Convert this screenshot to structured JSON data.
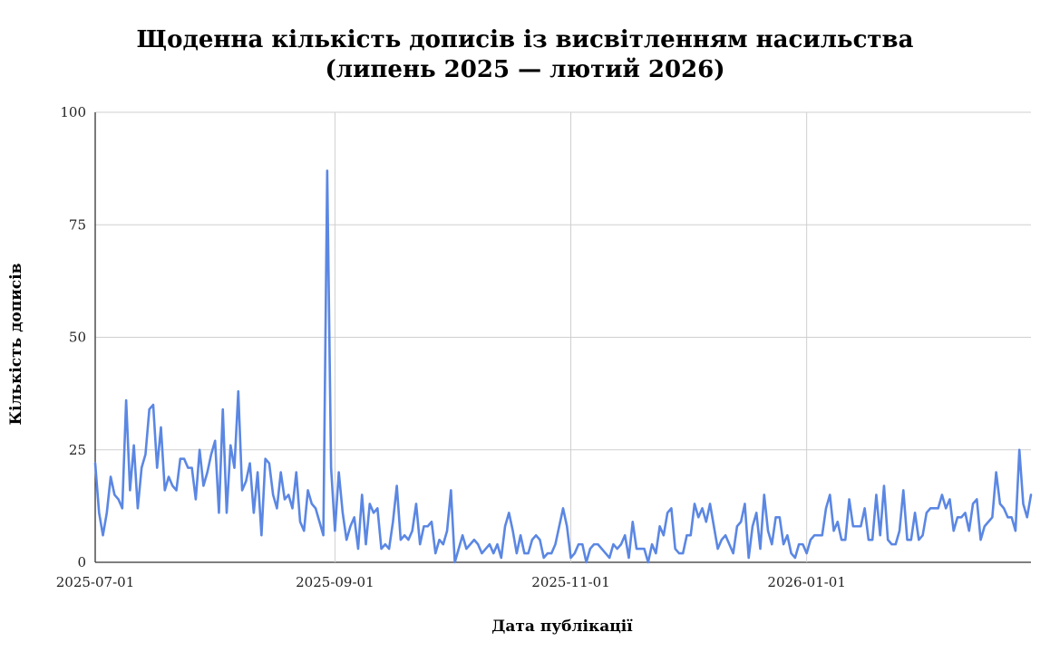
{
  "chart_data": {
    "type": "line",
    "title_lines": [
      "Щоденна кількість дописів із висвітленням насильства",
      "(липень 2025 — лютий 2026)"
    ],
    "xlabel": "Дата публікації",
    "ylabel": "Кількість дописів",
    "x_tick_labels": [
      "2025-07-01",
      "2025-09-01",
      "2025-11-01",
      "2026-01-01"
    ],
    "y_tick_labels": [
      "0",
      "25",
      "50",
      "75",
      "100"
    ],
    "ylim": [
      0,
      100
    ],
    "xlim": [
      "2025-07-01",
      "2026-02-28"
    ],
    "grid": true,
    "line_color": "#5b87e3",
    "series": [
      {
        "x_start": "2025-07-01",
        "x_step_days": 1,
        "values": [
          22,
          11,
          6,
          11,
          19,
          15,
          14,
          12,
          36,
          16,
          26,
          12,
          21,
          24,
          34,
          35,
          21,
          30,
          16,
          19,
          17,
          16,
          23,
          23,
          21,
          21,
          14,
          25,
          17,
          20,
          24,
          27,
          11,
          34,
          11,
          26,
          21,
          38,
          16,
          18,
          22,
          11,
          20,
          6,
          23,
          22,
          15,
          12,
          20,
          14,
          15,
          12,
          20,
          9,
          7,
          16,
          13,
          12,
          9,
          6,
          87,
          21,
          7,
          20,
          11,
          5,
          8,
          10,
          3,
          15,
          4,
          13,
          11,
          12,
          3,
          4,
          3,
          9,
          17,
          5,
          6,
          5,
          7,
          13,
          4,
          8,
          8,
          9,
          2,
          5,
          4,
          7,
          16,
          0,
          3,
          6,
          3,
          4,
          5,
          4,
          2,
          3,
          4,
          2,
          4,
          1,
          8,
          11,
          7,
          2,
          6,
          2,
          2,
          5,
          6,
          5,
          1,
          2,
          2,
          4,
          8,
          12,
          8,
          1,
          2,
          4,
          4,
          0,
          3,
          4,
          4,
          3,
          2,
          1,
          4,
          3,
          4,
          6,
          1,
          9,
          3,
          3,
          3,
          0,
          4,
          2,
          8,
          6,
          11,
          12,
          3,
          2,
          2,
          6,
          6,
          13,
          10,
          12,
          9,
          13,
          8,
          3,
          5,
          6,
          4,
          2,
          8,
          9,
          13,
          1,
          8,
          11,
          3,
          15,
          7,
          4,
          10,
          10,
          4,
          6,
          2,
          1,
          4,
          4,
          2,
          5,
          6,
          6,
          6,
          12,
          15,
          7,
          9,
          5,
          5,
          14,
          8,
          8,
          8,
          12,
          5,
          5,
          15,
          6,
          17,
          5,
          4,
          4,
          7,
          16,
          5,
          5,
          11,
          5,
          6,
          11,
          12,
          12,
          12,
          15,
          12,
          14,
          7,
          10,
          10,
          11,
          7,
          13,
          14,
          5,
          8,
          9,
          10,
          20,
          13,
          12,
          10,
          10,
          7,
          25,
          13,
          10,
          15
        ]
      }
    ]
  }
}
